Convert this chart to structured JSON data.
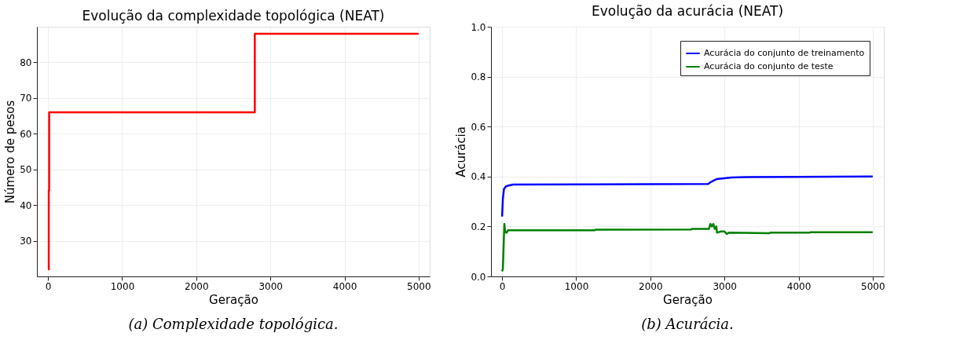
{
  "chart_data": [
    {
      "type": "step",
      "title": "Evolução da complexidade topológica (NEAT)",
      "xlabel": "Geração",
      "ylabel": "Número de pesos",
      "annotations": [
        "(a) Complexidade topológica."
      ],
      "series": [
        {
          "color": "#ff0000",
          "x": [
            0,
            10,
            15,
            2790,
            5000
          ],
          "values": [
            22,
            44,
            66,
            88,
            88
          ]
        }
      ],
      "xlim": [
        -150,
        5150
      ],
      "xticks": [
        0,
        1000,
        2000,
        3000,
        4000,
        5000
      ],
      "ylim": [
        20,
        90
      ],
      "yticks": [
        30,
        40,
        50,
        60,
        70,
        80
      ],
      "grid": true,
      "legend": false
    },
    {
      "type": "line",
      "title": "Evolução da acurácia (NEAT)",
      "xlabel": "Geração",
      "ylabel": "Acurácia",
      "annotations": [
        "(b) Acurácia."
      ],
      "series": [
        {
          "name": "Acurácia do conjunto de treinamento",
          "color": "#0000ff",
          "x": [
            0,
            10,
            25,
            50,
            100,
            150,
            2780,
            2800,
            2850,
            2900,
            3000,
            3100,
            3300,
            5000
          ],
          "values": [
            0.24,
            0.31,
            0.35,
            0.36,
            0.365,
            0.368,
            0.37,
            0.375,
            0.383,
            0.39,
            0.393,
            0.396,
            0.398,
            0.4
          ]
        },
        {
          "name": "Acurácia do conjunto de teste",
          "color": "#008000",
          "x": [
            0,
            10,
            20,
            30,
            40,
            60,
            80,
            1250,
            1260,
            2550,
            2560,
            2790,
            2810,
            2830,
            2850,
            2870,
            2890,
            2900,
            2950,
            3000,
            3030,
            3060,
            3600,
            3620,
            4150,
            4160,
            5000
          ],
          "values": [
            0.02,
            0.03,
            0.12,
            0.21,
            0.18,
            0.175,
            0.185,
            0.185,
            0.187,
            0.188,
            0.19,
            0.19,
            0.21,
            0.2,
            0.21,
            0.19,
            0.2,
            0.175,
            0.18,
            0.18,
            0.17,
            0.175,
            0.173,
            0.175,
            0.175,
            0.177,
            0.177
          ]
        }
      ],
      "xlim": [
        -150,
        5150
      ],
      "xticks": [
        0,
        1000,
        2000,
        3000,
        4000,
        5000
      ],
      "ylim": [
        0.0,
        1.0
      ],
      "yticks": [
        {
          "value": 0,
          "label": "0.0"
        },
        0.2,
        0.4,
        0.6,
        0.8,
        {
          "value": 1,
          "label": "1.0"
        }
      ],
      "grid": true,
      "legend": "top right"
    }
  ]
}
